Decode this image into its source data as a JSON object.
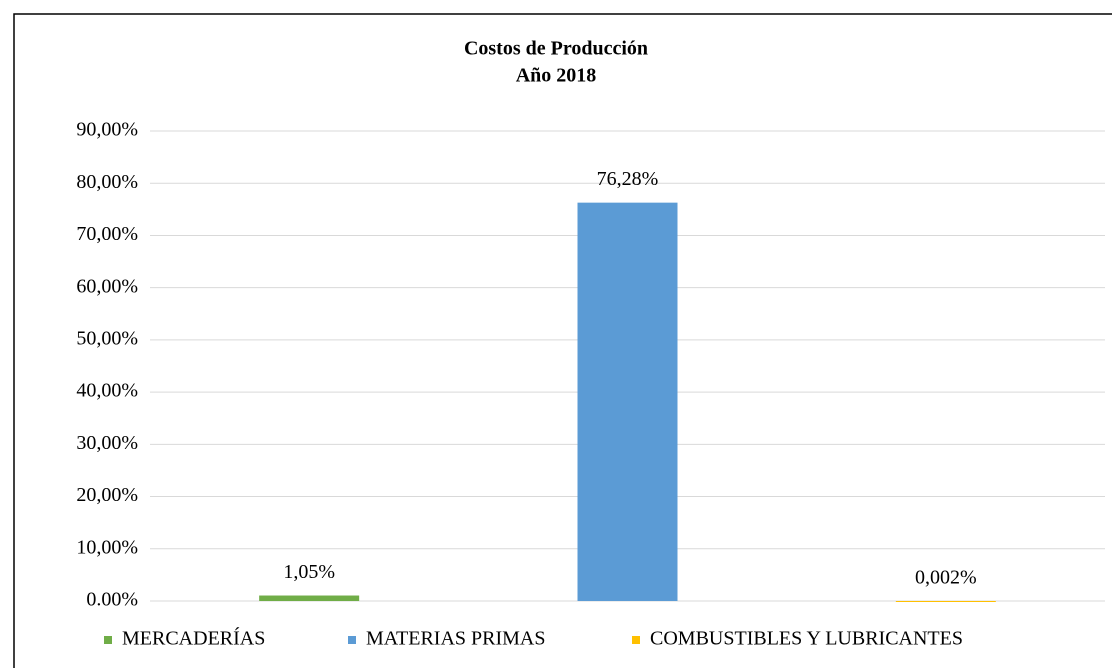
{
  "chart_data": {
    "type": "bar",
    "title": [
      "Costos de Producción",
      "Año 2018"
    ],
    "categories": [
      null
    ],
    "series": [
      {
        "name": "MERCADERÍAS",
        "color": "#70ad47",
        "values": [
          1.05
        ],
        "value_labels": [
          "1,05%"
        ]
      },
      {
        "name": "MATERIAS PRIMAS",
        "color": "#5b9bd5",
        "values": [
          76.28
        ],
        "value_labels": [
          "76,28%"
        ]
      },
      {
        "name": "COMBUSTIBLES Y LUBRICANTES",
        "color": "#ffc000",
        "values": [
          0.002
        ],
        "value_labels": [
          "0,002%"
        ]
      }
    ],
    "ylim": [
      0,
      90
    ],
    "yticks": [
      {
        "value": 0,
        "label": "0.00%"
      },
      {
        "value": 10,
        "label": "10,00%"
      },
      {
        "value": 20,
        "label": "20,00%"
      },
      {
        "value": 30,
        "label": "30,00%"
      },
      {
        "value": 40,
        "label": "40,00%"
      },
      {
        "value": 50,
        "label": "50,00%"
      },
      {
        "value": 60,
        "label": "60,00%"
      },
      {
        "value": 70,
        "label": "70,00%"
      },
      {
        "value": 80,
        "label": "80,00%"
      },
      {
        "value": 90,
        "label": "90,00%"
      }
    ],
    "grid": true,
    "legend": "bottom"
  }
}
